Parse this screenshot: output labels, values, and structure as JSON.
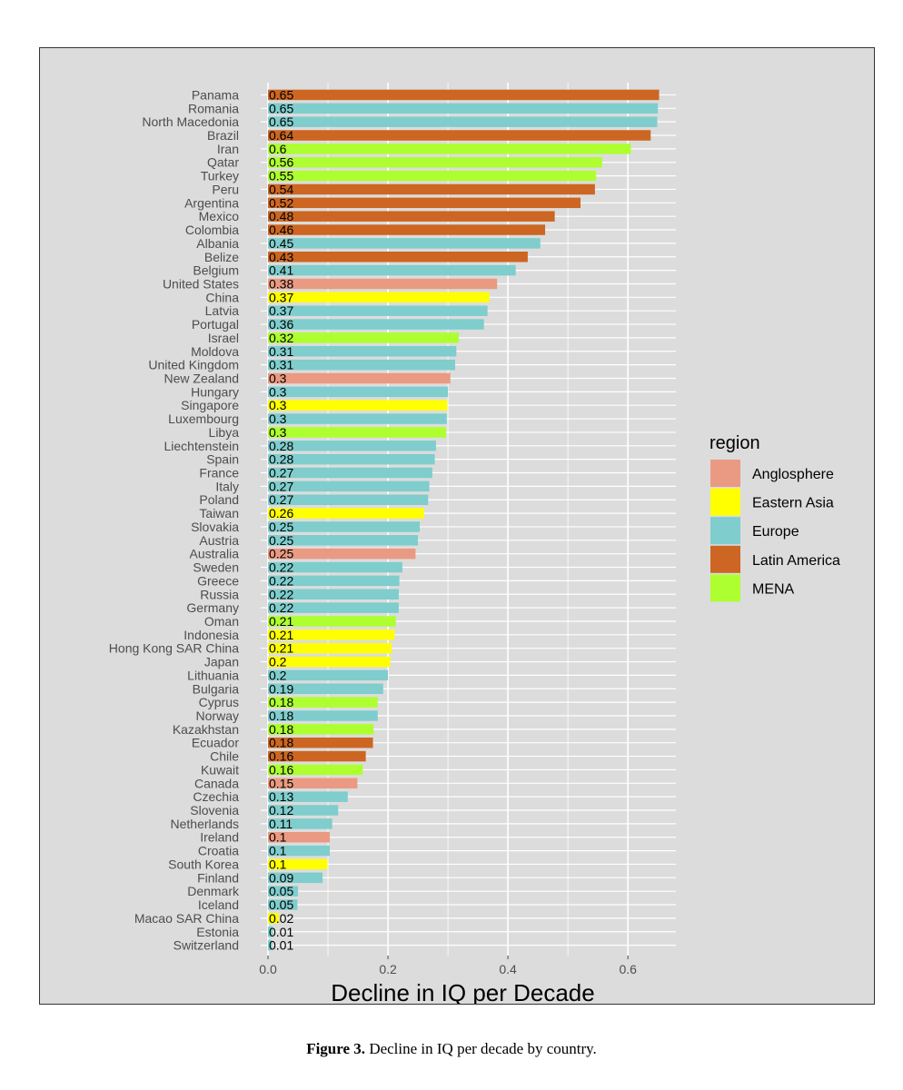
{
  "chart_data": {
    "type": "bar",
    "orientation": "horizontal",
    "title": "",
    "xlabel": "Decline in IQ per Decade",
    "ylabel": "",
    "xlim": [
      0,
      0.68
    ],
    "x_ticks": [
      0.0,
      0.2,
      0.4,
      0.6
    ],
    "x_tick_labels": [
      "0.0",
      "0.2",
      "0.4",
      "0.6"
    ],
    "grid": true,
    "legend_title": "region",
    "legend_placement": "right",
    "legend": [
      {
        "name": "Anglosphere",
        "color": "#ea9a82"
      },
      {
        "name": "Eastern Asia",
        "color": "#ffff00"
      },
      {
        "name": "Europe",
        "color": "#7fcdcd"
      },
      {
        "name": "Latin America",
        "color": "#cc6622"
      },
      {
        "name": "MENA",
        "color": "#adff2f"
      }
    ],
    "bars": [
      {
        "country": "Panama",
        "value": 0.652,
        "label": "0.65",
        "region": "Latin America"
      },
      {
        "country": "Romania",
        "value": 0.65,
        "label": "0.65",
        "region": "Europe"
      },
      {
        "country": "North Macedonia",
        "value": 0.649,
        "label": "0.65",
        "region": "Europe"
      },
      {
        "country": "Brazil",
        "value": 0.638,
        "label": "0.64",
        "region": "Latin America"
      },
      {
        "country": "Iran",
        "value": 0.605,
        "label": "0.6",
        "region": "MENA"
      },
      {
        "country": "Qatar",
        "value": 0.557,
        "label": "0.56",
        "region": "MENA"
      },
      {
        "country": "Turkey",
        "value": 0.547,
        "label": "0.55",
        "region": "MENA"
      },
      {
        "country": "Peru",
        "value": 0.545,
        "label": "0.54",
        "region": "Latin America"
      },
      {
        "country": "Argentina",
        "value": 0.521,
        "label": "0.52",
        "region": "Latin America"
      },
      {
        "country": "Mexico",
        "value": 0.478,
        "label": "0.48",
        "region": "Latin America"
      },
      {
        "country": "Colombia",
        "value": 0.462,
        "label": "0.46",
        "region": "Latin America"
      },
      {
        "country": "Albania",
        "value": 0.454,
        "label": "0.45",
        "region": "Europe"
      },
      {
        "country": "Belize",
        "value": 0.433,
        "label": "0.43",
        "region": "Latin America"
      },
      {
        "country": "Belgium",
        "value": 0.413,
        "label": "0.41",
        "region": "Europe"
      },
      {
        "country": "United States",
        "value": 0.382,
        "label": "0.38",
        "region": "Anglosphere"
      },
      {
        "country": "China",
        "value": 0.369,
        "label": "0.37",
        "region": "Eastern Asia"
      },
      {
        "country": "Latvia",
        "value": 0.366,
        "label": "0.37",
        "region": "Europe"
      },
      {
        "country": "Portugal",
        "value": 0.36,
        "label": "0.36",
        "region": "Europe"
      },
      {
        "country": "Israel",
        "value": 0.318,
        "label": "0.32",
        "region": "MENA"
      },
      {
        "country": "Moldova",
        "value": 0.314,
        "label": "0.31",
        "region": "Europe"
      },
      {
        "country": "United Kingdom",
        "value": 0.312,
        "label": "0.31",
        "region": "Europe"
      },
      {
        "country": "New Zealand",
        "value": 0.304,
        "label": "0.3",
        "region": "Anglosphere"
      },
      {
        "country": "Hungary",
        "value": 0.3,
        "label": "0.3",
        "region": "Europe"
      },
      {
        "country": "Singapore",
        "value": 0.299,
        "label": "0.3",
        "region": "Eastern Asia"
      },
      {
        "country": "Luxembourg",
        "value": 0.298,
        "label": "0.3",
        "region": "Europe"
      },
      {
        "country": "Libya",
        "value": 0.297,
        "label": "0.3",
        "region": "MENA"
      },
      {
        "country": "Liechtenstein",
        "value": 0.28,
        "label": "0.28",
        "region": "Europe"
      },
      {
        "country": "Spain",
        "value": 0.278,
        "label": "0.28",
        "region": "Europe"
      },
      {
        "country": "France",
        "value": 0.274,
        "label": "0.27",
        "region": "Europe"
      },
      {
        "country": "Italy",
        "value": 0.269,
        "label": "0.27",
        "region": "Europe"
      },
      {
        "country": "Poland",
        "value": 0.267,
        "label": "0.27",
        "region": "Europe"
      },
      {
        "country": "Taiwan",
        "value": 0.26,
        "label": "0.26",
        "region": "Eastern Asia"
      },
      {
        "country": "Slovakia",
        "value": 0.253,
        "label": "0.25",
        "region": "Europe"
      },
      {
        "country": "Austria",
        "value": 0.25,
        "label": "0.25",
        "region": "Europe"
      },
      {
        "country": "Australia",
        "value": 0.246,
        "label": "0.25",
        "region": "Anglosphere"
      },
      {
        "country": "Sweden",
        "value": 0.224,
        "label": "0.22",
        "region": "Europe"
      },
      {
        "country": "Greece",
        "value": 0.219,
        "label": "0.22",
        "region": "Europe"
      },
      {
        "country": "Russia",
        "value": 0.218,
        "label": "0.22",
        "region": "Europe"
      },
      {
        "country": "Germany",
        "value": 0.218,
        "label": "0.22",
        "region": "Europe"
      },
      {
        "country": "Oman",
        "value": 0.213,
        "label": "0.21",
        "region": "MENA"
      },
      {
        "country": "Indonesia",
        "value": 0.211,
        "label": "0.21",
        "region": "Eastern Asia"
      },
      {
        "country": "Hong Kong SAR China",
        "value": 0.206,
        "label": "0.21",
        "region": "Eastern Asia"
      },
      {
        "country": "Japan",
        "value": 0.204,
        "label": "0.2",
        "region": "Eastern Asia"
      },
      {
        "country": "Lithuania",
        "value": 0.2,
        "label": "0.2",
        "region": "Europe"
      },
      {
        "country": "Bulgaria",
        "value": 0.192,
        "label": "0.19",
        "region": "Europe"
      },
      {
        "country": "Cyprus",
        "value": 0.183,
        "label": "0.18",
        "region": "MENA"
      },
      {
        "country": "Norway",
        "value": 0.183,
        "label": "0.18",
        "region": "Europe"
      },
      {
        "country": "Kazakhstan",
        "value": 0.176,
        "label": "0.18",
        "region": "MENA"
      },
      {
        "country": "Ecuador",
        "value": 0.175,
        "label": "0.18",
        "region": "Latin America"
      },
      {
        "country": "Chile",
        "value": 0.163,
        "label": "0.16",
        "region": "Latin America"
      },
      {
        "country": "Kuwait",
        "value": 0.158,
        "label": "0.16",
        "region": "MENA"
      },
      {
        "country": "Canada",
        "value": 0.149,
        "label": "0.15",
        "region": "Anglosphere"
      },
      {
        "country": "Czechia",
        "value": 0.133,
        "label": "0.13",
        "region": "Europe"
      },
      {
        "country": "Slovenia",
        "value": 0.117,
        "label": "0.12",
        "region": "Europe"
      },
      {
        "country": "Netherlands",
        "value": 0.107,
        "label": "0.11",
        "region": "Europe"
      },
      {
        "country": "Ireland",
        "value": 0.103,
        "label": "0.1",
        "region": "Anglosphere"
      },
      {
        "country": "Croatia",
        "value": 0.103,
        "label": "0.1",
        "region": "Europe"
      },
      {
        "country": "South Korea",
        "value": 0.099,
        "label": "0.1",
        "region": "Eastern Asia"
      },
      {
        "country": "Finland",
        "value": 0.091,
        "label": "0.09",
        "region": "Europe"
      },
      {
        "country": "Denmark",
        "value": 0.05,
        "label": "0.05",
        "region": "Europe"
      },
      {
        "country": "Iceland",
        "value": 0.049,
        "label": "0.05",
        "region": "Europe"
      },
      {
        "country": "Macao SAR China",
        "value": 0.018,
        "label": "0.02",
        "region": "Eastern Asia"
      },
      {
        "country": "Estonia",
        "value": 0.008,
        "label": "0.01",
        "region": "Europe"
      },
      {
        "country": "Switzerland",
        "value": 0.007,
        "label": "0.01",
        "region": "Europe"
      }
    ]
  },
  "caption": {
    "label": "Figure 3.",
    "text": "Decline in IQ per decade by country."
  }
}
